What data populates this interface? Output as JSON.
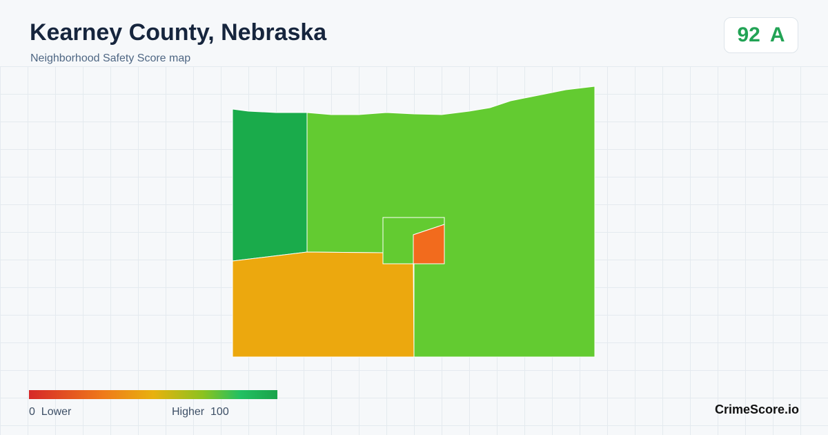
{
  "header": {
    "title": "Kearney County, Nebraska",
    "subtitle": "Neighborhood Safety Score map"
  },
  "score": {
    "value": 92,
    "grade": "A"
  },
  "legend": {
    "min": 0,
    "min_label": "Lower",
    "max_label": "Higher",
    "max": 100
  },
  "brand": "CrimeScore.io"
}
